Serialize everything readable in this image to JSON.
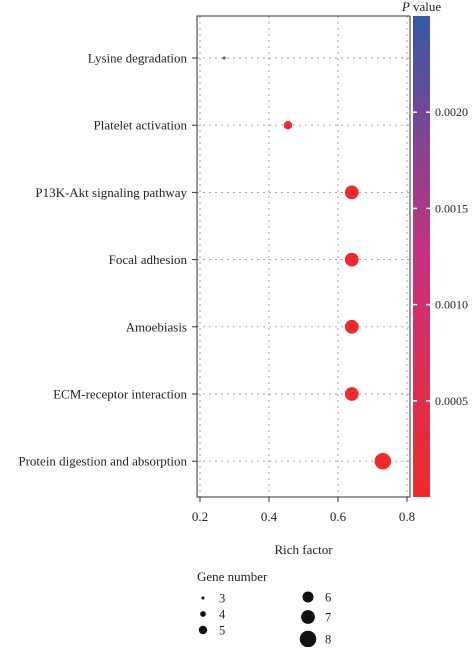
{
  "chart_data": {
    "type": "scatter",
    "title": "",
    "xlabel": "Rich factor",
    "ylabel": "",
    "xlim": [
      0.2,
      0.8
    ],
    "xticks": [
      0.2,
      0.4,
      0.6,
      0.8
    ],
    "xtick_labels": [
      "0.2",
      "0.4",
      "0.6",
      "0.8"
    ],
    "grid": true,
    "categories": [
      "Lysine degradation",
      "Platelet activation",
      "P13K-Akt signaling pathway",
      "Focal adhesion",
      "Amoebiasis",
      "ECM-receptor interaction",
      "Protein digestion and absorption"
    ],
    "points": [
      {
        "category": "Lysine degradation",
        "rich_factor": 0.27,
        "gene_number": 3,
        "p_value": 0.0025
      },
      {
        "category": "Platelet activation",
        "rich_factor": 0.455,
        "gene_number": 5,
        "p_value": 5e-05
      },
      {
        "category": "P13K-Akt signaling pathway",
        "rich_factor": 0.64,
        "gene_number": 7,
        "p_value": 5e-05
      },
      {
        "category": "Focal adhesion",
        "rich_factor": 0.64,
        "gene_number": 7,
        "p_value": 5e-05
      },
      {
        "category": "Amoebiasis",
        "rich_factor": 0.64,
        "gene_number": 7,
        "p_value": 5e-05
      },
      {
        "category": "ECM-receptor interaction",
        "rich_factor": 0.64,
        "gene_number": 7,
        "p_value": 5e-05
      },
      {
        "category": "Protein digestion and absorption",
        "rich_factor": 0.73,
        "gene_number": 8,
        "p_value": 1e-05
      }
    ],
    "size_legend": {
      "title": "Gene number",
      "values": [
        3,
        4,
        5,
        6,
        7,
        8
      ],
      "labels": [
        "3",
        "4",
        "5",
        "6",
        "7",
        "8"
      ]
    },
    "color_legend": {
      "title_italic": "P",
      "title_rest": " value",
      "range": [
        0,
        0.0025
      ],
      "ticks": [
        0.0005,
        0.001,
        0.0015,
        0.002
      ],
      "tick_labels": [
        "0.0005",
        "0.0010",
        "0.0015",
        "0.0020"
      ],
      "low_color": "#ee2b2b",
      "mid_color": "#c8317e",
      "high_color": "#3559a8"
    }
  }
}
